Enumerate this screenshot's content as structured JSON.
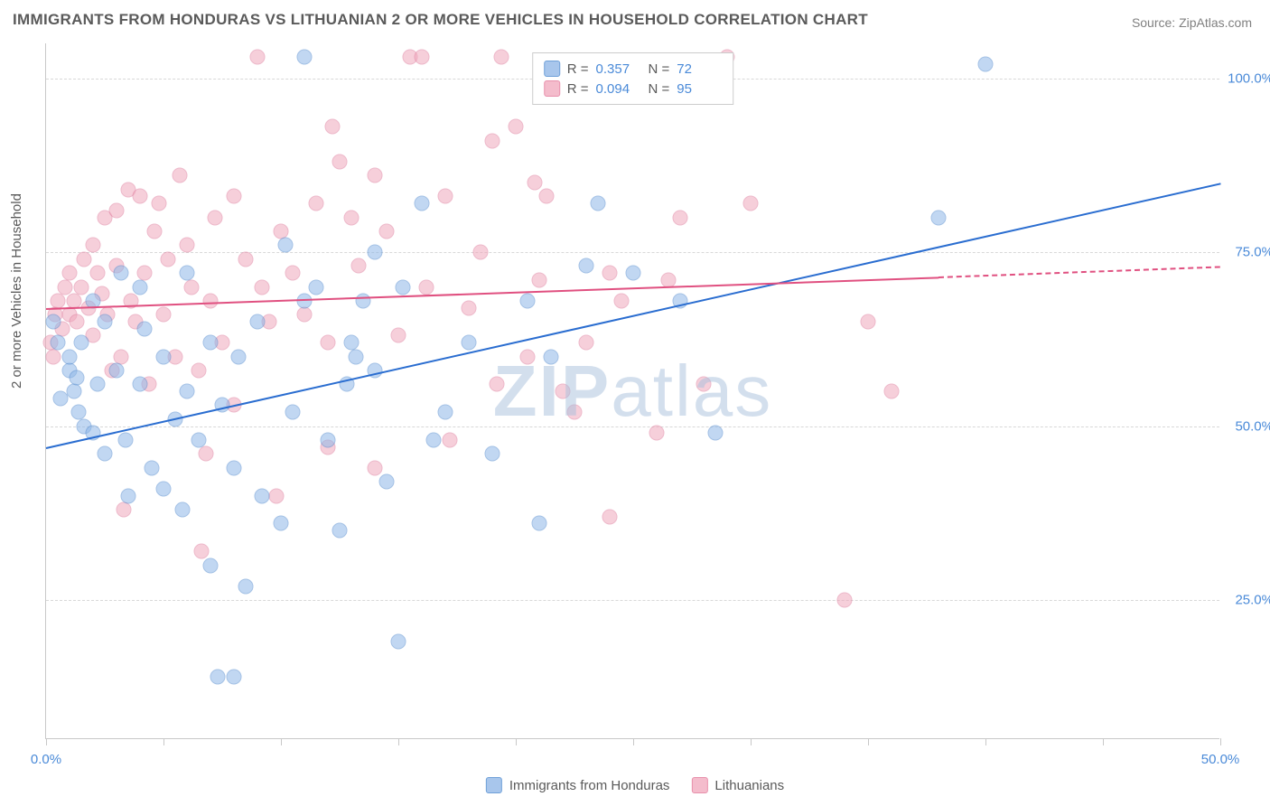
{
  "title": "IMMIGRANTS FROM HONDURAS VS LITHUANIAN 2 OR MORE VEHICLES IN HOUSEHOLD CORRELATION CHART",
  "source": "Source: ZipAtlas.com",
  "y_label": "2 or more Vehicles in Household",
  "watermark_a": "ZIP",
  "watermark_b": "atlas",
  "chart": {
    "type": "scatter",
    "xlim": [
      0,
      50
    ],
    "ylim": [
      5,
      105
    ],
    "x_ticks": [
      0,
      5,
      10,
      15,
      20,
      25,
      30,
      35,
      40,
      45,
      50
    ],
    "x_tick_labels": {
      "0": "0.0%",
      "50": "50.0%"
    },
    "y_grid": [
      25,
      50,
      75,
      100
    ],
    "y_tick_labels": {
      "25": "25.0%",
      "50": "50.0%",
      "75": "75.0%",
      "100": "100.0%"
    },
    "background_color": "#ffffff",
    "grid_color": "#d8d8d8",
    "axis_color": "#c8c8c8",
    "tick_label_color": "#4a8ad8",
    "series": {
      "honduras": {
        "label": "Immigrants from Honduras",
        "color_fill": "#8fb8e8",
        "color_stroke": "#5a8fd0",
        "R": "0.357",
        "N": "72",
        "trend": {
          "x0": 0,
          "y0": 47,
          "x1": 50,
          "y1": 85,
          "color": "#2a6dd0"
        },
        "points": [
          [
            0.3,
            65
          ],
          [
            0.5,
            62
          ],
          [
            0.6,
            54
          ],
          [
            1,
            58
          ],
          [
            1,
            60
          ],
          [
            1.2,
            55
          ],
          [
            1.3,
            57
          ],
          [
            1.5,
            62
          ],
          [
            1.4,
            52
          ],
          [
            1.6,
            50
          ],
          [
            2,
            68
          ],
          [
            2,
            49
          ],
          [
            2.2,
            56
          ],
          [
            2.5,
            65
          ],
          [
            2.5,
            46
          ],
          [
            3,
            58
          ],
          [
            3.2,
            72
          ],
          [
            3.4,
            48
          ],
          [
            3.5,
            40
          ],
          [
            4,
            56
          ],
          [
            4,
            70
          ],
          [
            4.2,
            64
          ],
          [
            4.5,
            44
          ],
          [
            5,
            41
          ],
          [
            5,
            60
          ],
          [
            5.5,
            51
          ],
          [
            5.8,
            38
          ],
          [
            6,
            72
          ],
          [
            6,
            55
          ],
          [
            6.5,
            48
          ],
          [
            7,
            62
          ],
          [
            7,
            30
          ],
          [
            7.3,
            14
          ],
          [
            7.5,
            53
          ],
          [
            8,
            44
          ],
          [
            8.2,
            60
          ],
          [
            8.5,
            27
          ],
          [
            9,
            65
          ],
          [
            9.2,
            40
          ],
          [
            10,
            36
          ],
          [
            10.2,
            76
          ],
          [
            10.5,
            52
          ],
          [
            11,
            103
          ],
          [
            11,
            68
          ],
          [
            11.5,
            70
          ],
          [
            12,
            48
          ],
          [
            12.5,
            35
          ],
          [
            12.8,
            56
          ],
          [
            13,
            62
          ],
          [
            13.2,
            60
          ],
          [
            13.5,
            68
          ],
          [
            14,
            75
          ],
          [
            14,
            58
          ],
          [
            14.5,
            42
          ],
          [
            15,
            19
          ],
          [
            15.2,
            70
          ],
          [
            16,
            82
          ],
          [
            16.5,
            48
          ],
          [
            17,
            52
          ],
          [
            18,
            62
          ],
          [
            19,
            46
          ],
          [
            20.5,
            68
          ],
          [
            21,
            36
          ],
          [
            21.5,
            60
          ],
          [
            23,
            73
          ],
          [
            23.5,
            82
          ],
          [
            25,
            72
          ],
          [
            27,
            68
          ],
          [
            28.5,
            49
          ],
          [
            40,
            102
          ],
          [
            38,
            80
          ],
          [
            8,
            14
          ]
        ]
      },
      "lithuanians": {
        "label": "Lithuanians",
        "color_fill": "#f0a8bc",
        "color_stroke": "#e080a0",
        "R": "0.094",
        "N": "95",
        "trend": {
          "x0": 0,
          "y0": 67,
          "x1": 38,
          "y1": 71.5,
          "color": "#e05080",
          "dash_x1": 50,
          "dash_y1": 73
        },
        "points": [
          [
            0.2,
            62
          ],
          [
            0.3,
            60
          ],
          [
            0.4,
            66
          ],
          [
            0.5,
            68
          ],
          [
            0.7,
            64
          ],
          [
            0.8,
            70
          ],
          [
            1,
            66
          ],
          [
            1,
            72
          ],
          [
            1.2,
            68
          ],
          [
            1.3,
            65
          ],
          [
            1.5,
            70
          ],
          [
            1.6,
            74
          ],
          [
            1.8,
            67
          ],
          [
            2,
            76
          ],
          [
            2,
            63
          ],
          [
            2.2,
            72
          ],
          [
            2.4,
            69
          ],
          [
            2.5,
            80
          ],
          [
            2.6,
            66
          ],
          [
            2.8,
            58
          ],
          [
            3,
            81
          ],
          [
            3,
            73
          ],
          [
            3.2,
            60
          ],
          [
            3.5,
            84
          ],
          [
            3.6,
            68
          ],
          [
            3.8,
            65
          ],
          [
            4,
            83
          ],
          [
            4.2,
            72
          ],
          [
            4.4,
            56
          ],
          [
            4.6,
            78
          ],
          [
            4.8,
            82
          ],
          [
            5,
            66
          ],
          [
            5.2,
            74
          ],
          [
            5.5,
            60
          ],
          [
            5.7,
            86
          ],
          [
            6,
            76
          ],
          [
            6.2,
            70
          ],
          [
            6.5,
            58
          ],
          [
            6.6,
            32
          ],
          [
            7,
            68
          ],
          [
            7.2,
            80
          ],
          [
            7.5,
            62
          ],
          [
            8,
            83
          ],
          [
            8,
            53
          ],
          [
            8.5,
            74
          ],
          [
            9,
            103
          ],
          [
            9.2,
            70
          ],
          [
            9.5,
            65
          ],
          [
            9.8,
            40
          ],
          [
            10,
            78
          ],
          [
            10.5,
            72
          ],
          [
            11,
            66
          ],
          [
            11.5,
            82
          ],
          [
            12,
            62
          ],
          [
            12.2,
            93
          ],
          [
            12.5,
            88
          ],
          [
            13,
            80
          ],
          [
            13.3,
            73
          ],
          [
            14,
            86
          ],
          [
            14.5,
            78
          ],
          [
            15,
            63
          ],
          [
            15.5,
            103
          ],
          [
            16,
            103
          ],
          [
            16.2,
            70
          ],
          [
            17,
            83
          ],
          [
            17.2,
            48
          ],
          [
            18,
            67
          ],
          [
            18.5,
            75
          ],
          [
            19,
            91
          ],
          [
            19.2,
            56
          ],
          [
            19.4,
            103
          ],
          [
            20,
            93
          ],
          [
            20.5,
            60
          ],
          [
            20.8,
            85
          ],
          [
            21,
            71
          ],
          [
            21.3,
            83
          ],
          [
            22,
            55
          ],
          [
            22.5,
            52
          ],
          [
            23,
            62
          ],
          [
            24,
            72
          ],
          [
            24.5,
            68
          ],
          [
            26,
            49
          ],
          [
            26.5,
            71
          ],
          [
            27,
            80
          ],
          [
            28,
            56
          ],
          [
            29,
            103
          ],
          [
            30,
            82
          ],
          [
            34,
            25
          ],
          [
            35,
            65
          ],
          [
            36,
            55
          ],
          [
            24,
            37
          ],
          [
            14,
            44
          ],
          [
            12,
            47
          ],
          [
            3.3,
            38
          ],
          [
            6.8,
            46
          ]
        ]
      }
    }
  },
  "legend_top": {
    "R_label": "R =",
    "N_label": "N ="
  }
}
